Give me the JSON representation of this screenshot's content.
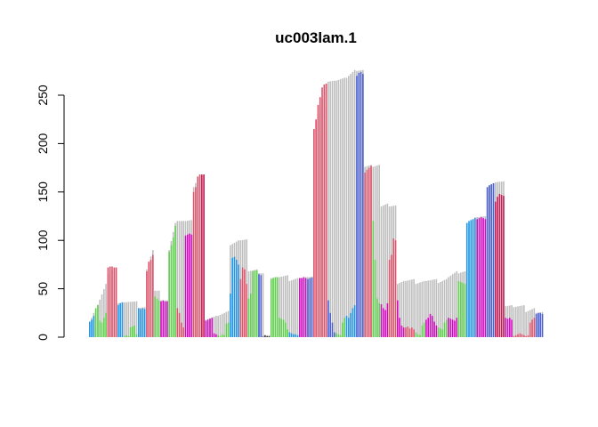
{
  "chart_data": {
    "type": "bar",
    "title": "uc003lam.1",
    "xlabel": "",
    "ylabel": "",
    "ylim": [
      0,
      275
    ],
    "yticks": [
      "0",
      "50",
      "100",
      "150",
      "200",
      "250"
    ],
    "ytick_values": [
      0,
      50,
      100,
      150,
      200,
      250
    ],
    "grid": false,
    "legend": "none",
    "colors": {
      "background": "#bebebe",
      "red": "#df536b",
      "green": "#61d04f",
      "blue": "#2297e6",
      "navy": "#4a5fd0",
      "purple": "#cd0bbc",
      "dark": "#333333",
      "crimson": "#c21e56"
    },
    "segments": [
      {
        "n": 3,
        "bg": [
          15,
          25
        ],
        "vals": [
          16,
          18,
          22
        ],
        "col": "blue"
      },
      {
        "n": 6,
        "bg": [
          28,
          55
        ],
        "vals": [
          30,
          33,
          17,
          15,
          20,
          25
        ],
        "col": "green"
      },
      {
        "n": 5,
        "bg": [
          65,
          72
        ],
        "vals": [
          72,
          73,
          73,
          72,
          72
        ],
        "col": "red"
      },
      {
        "n": 3,
        "bg": [
          35,
          36
        ],
        "vals": [
          33,
          35,
          36
        ],
        "col": "blue"
      },
      {
        "n": 7,
        "bg": [
          36,
          37
        ],
        "vals": [
          1,
          2,
          1,
          10,
          11,
          12,
          3
        ],
        "col": "green"
      },
      {
        "n": 4,
        "bg": [
          30,
          31
        ],
        "vals": [
          30,
          29,
          30,
          29
        ],
        "col": "blue"
      },
      {
        "n": 4,
        "bg": [
          70,
          90
        ],
        "vals": [
          68,
          78,
          80,
          85
        ],
        "col": "red"
      },
      {
        "n": 3,
        "bg": [
          48,
          48
        ],
        "vals": [
          42,
          40,
          38
        ],
        "col": "green"
      },
      {
        "n": 4,
        "bg": [
          38,
          38
        ],
        "vals": [
          37,
          38,
          37,
          37
        ],
        "col": "purple"
      },
      {
        "n": 4,
        "bg": [
          90,
          118
        ],
        "vals": [
          88,
          95,
          103,
          115
        ],
        "col": "green"
      },
      {
        "n": 4,
        "bg": [
          120,
          120
        ],
        "vals": [
          30,
          25,
          15,
          10
        ],
        "col": "red"
      },
      {
        "n": 4,
        "bg": [
          120,
          121
        ],
        "vals": [
          105,
          106,
          107,
          106
        ],
        "col": "purple"
      },
      {
        "n": 4,
        "bg": [
          155,
          168
        ],
        "vals": [
          150,
          155,
          166,
          168
        ],
        "col": "red"
      },
      {
        "n": 2,
        "bg": [
          168,
          168
        ],
        "vals": [
          168,
          168
        ],
        "col": "crimson"
      },
      {
        "n": 6,
        "bg": [
          18,
          22
        ],
        "vals": [
          17,
          18,
          19,
          20,
          4,
          3
        ],
        "col": "purple"
      },
      {
        "n": 6,
        "bg": [
          22,
          27
        ],
        "vals": [
          2,
          1,
          3,
          2,
          14,
          15
        ],
        "col": "green"
      },
      {
        "n": 5,
        "bg": [
          95,
          100
        ],
        "vals": [
          45,
          82,
          83,
          80,
          75
        ],
        "col": "blue"
      },
      {
        "n": 4,
        "bg": [
          100,
          101
        ],
        "vals": [
          60,
          72,
          70,
          55
        ],
        "col": "red"
      },
      {
        "n": 5,
        "bg": [
          68,
          70
        ],
        "vals": [
          40,
          45,
          68,
          69,
          69
        ],
        "col": "green"
      },
      {
        "n": 3,
        "bg": [
          66,
          66
        ],
        "vals": [
          65,
          64,
          1
        ],
        "col": "navy"
      },
      {
        "n": 3,
        "bg": [
          2,
          2
        ],
        "vals": [
          2,
          1,
          1
        ],
        "col": "dark"
      },
      {
        "n": 4,
        "bg": [
          61,
          62
        ],
        "vals": [
          60,
          61,
          62,
          62
        ],
        "col": "green"
      },
      {
        "n": 5,
        "bg": [
          62,
          64
        ],
        "vals": [
          20,
          19,
          18,
          15,
          8
        ],
        "col": "green"
      },
      {
        "n": 5,
        "bg": [
          58,
          61
        ],
        "vals": [
          5,
          4,
          3,
          3,
          2
        ],
        "col": "blue"
      },
      {
        "n": 4,
        "bg": [
          61,
          62
        ],
        "vals": [
          61,
          61,
          62,
          61
        ],
        "col": "purple"
      },
      {
        "n": 3,
        "bg": [
          62,
          62
        ],
        "vals": [
          60,
          61,
          62
        ],
        "col": "navy"
      },
      {
        "n": 7,
        "bg": [
          215,
          262
        ],
        "vals": [
          215,
          225,
          240,
          248,
          258,
          261,
          262
        ],
        "col": "red"
      },
      {
        "n": 4,
        "bg": [
          264,
          265
        ],
        "vals": [
          38,
          25,
          15,
          5
        ],
        "col": "navy"
      },
      {
        "n": 5,
        "bg": [
          265,
          268
        ],
        "vals": [
          4,
          3,
          2,
          15,
          20
        ],
        "col": "green"
      },
      {
        "n": 5,
        "bg": [
          268,
          276
        ],
        "vals": [
          22,
          20,
          25,
          30,
          33
        ],
        "col": "blue"
      },
      {
        "n": 4,
        "bg": [
          275,
          276
        ],
        "vals": [
          270,
          273,
          274,
          272
        ],
        "col": "navy"
      },
      {
        "n": 4,
        "bg": [
          176,
          178
        ],
        "vals": [
          170,
          173,
          175,
          177
        ],
        "col": "red"
      },
      {
        "n": 4,
        "bg": [
          176,
          178
        ],
        "vals": [
          120,
          80,
          40,
          35
        ],
        "col": "green"
      },
      {
        "n": 4,
        "bg": [
          135,
          138
        ],
        "vals": [
          34,
          30,
          28,
          35
        ],
        "col": "purple"
      },
      {
        "n": 4,
        "bg": [
          135,
          136
        ],
        "vals": [
          80,
          85,
          102,
          100
        ],
        "col": "red"
      },
      {
        "n": 4,
        "bg": [
          55,
          58
        ],
        "vals": [
          38,
          20,
          12,
          10
        ],
        "col": "purple"
      },
      {
        "n": 5,
        "bg": [
          58,
          60
        ],
        "vals": [
          10,
          11,
          9,
          10,
          8
        ],
        "col": "red"
      },
      {
        "n": 5,
        "bg": [
          55,
          58
        ],
        "vals": [
          5,
          3,
          2,
          12,
          15
        ],
        "col": "green"
      },
      {
        "n": 6,
        "bg": [
          58,
          60
        ],
        "vals": [
          18,
          20,
          24,
          22,
          16,
          12
        ],
        "col": "purple"
      },
      {
        "n": 5,
        "bg": [
          56,
          60
        ],
        "vals": [
          10,
          9,
          8,
          15,
          18
        ],
        "col": "green"
      },
      {
        "n": 5,
        "bg": [
          62,
          68
        ],
        "vals": [
          20,
          19,
          18,
          17,
          20
        ],
        "col": "purple"
      },
      {
        "n": 4,
        "bg": [
          66,
          68
        ],
        "vals": [
          58,
          57,
          56,
          55
        ],
        "col": "green"
      },
      {
        "n": 5,
        "bg": [
          115,
          124
        ],
        "vals": [
          118,
          120,
          121,
          122,
          123
        ],
        "col": "blue"
      },
      {
        "n": 5,
        "bg": [
          124,
          125
        ],
        "vals": [
          122,
          123,
          124,
          123,
          122
        ],
        "col": "purple"
      },
      {
        "n": 4,
        "bg": [
          155,
          159
        ],
        "vals": [
          155,
          157,
          158,
          159
        ],
        "col": "navy"
      },
      {
        "n": 5,
        "bg": [
          160,
          161
        ],
        "vals": [
          140,
          145,
          148,
          147,
          146
        ],
        "col": "crimson"
      },
      {
        "n": 4,
        "bg": [
          32,
          33
        ],
        "vals": [
          20,
          19,
          20,
          18
        ],
        "col": "purple"
      },
      {
        "n": 6,
        "bg": [
          31,
          33
        ],
        "vals": [
          1,
          2,
          3,
          4,
          3,
          2
        ],
        "col": "red"
      },
      {
        "n": 5,
        "bg": [
          26,
          30
        ],
        "vals": [
          1,
          2,
          15,
          18,
          20
        ],
        "col": "red"
      },
      {
        "n": 4,
        "bg": [
          25,
          26
        ],
        "vals": [
          24,
          25,
          25,
          24
        ],
        "col": "navy"
      }
    ]
  }
}
